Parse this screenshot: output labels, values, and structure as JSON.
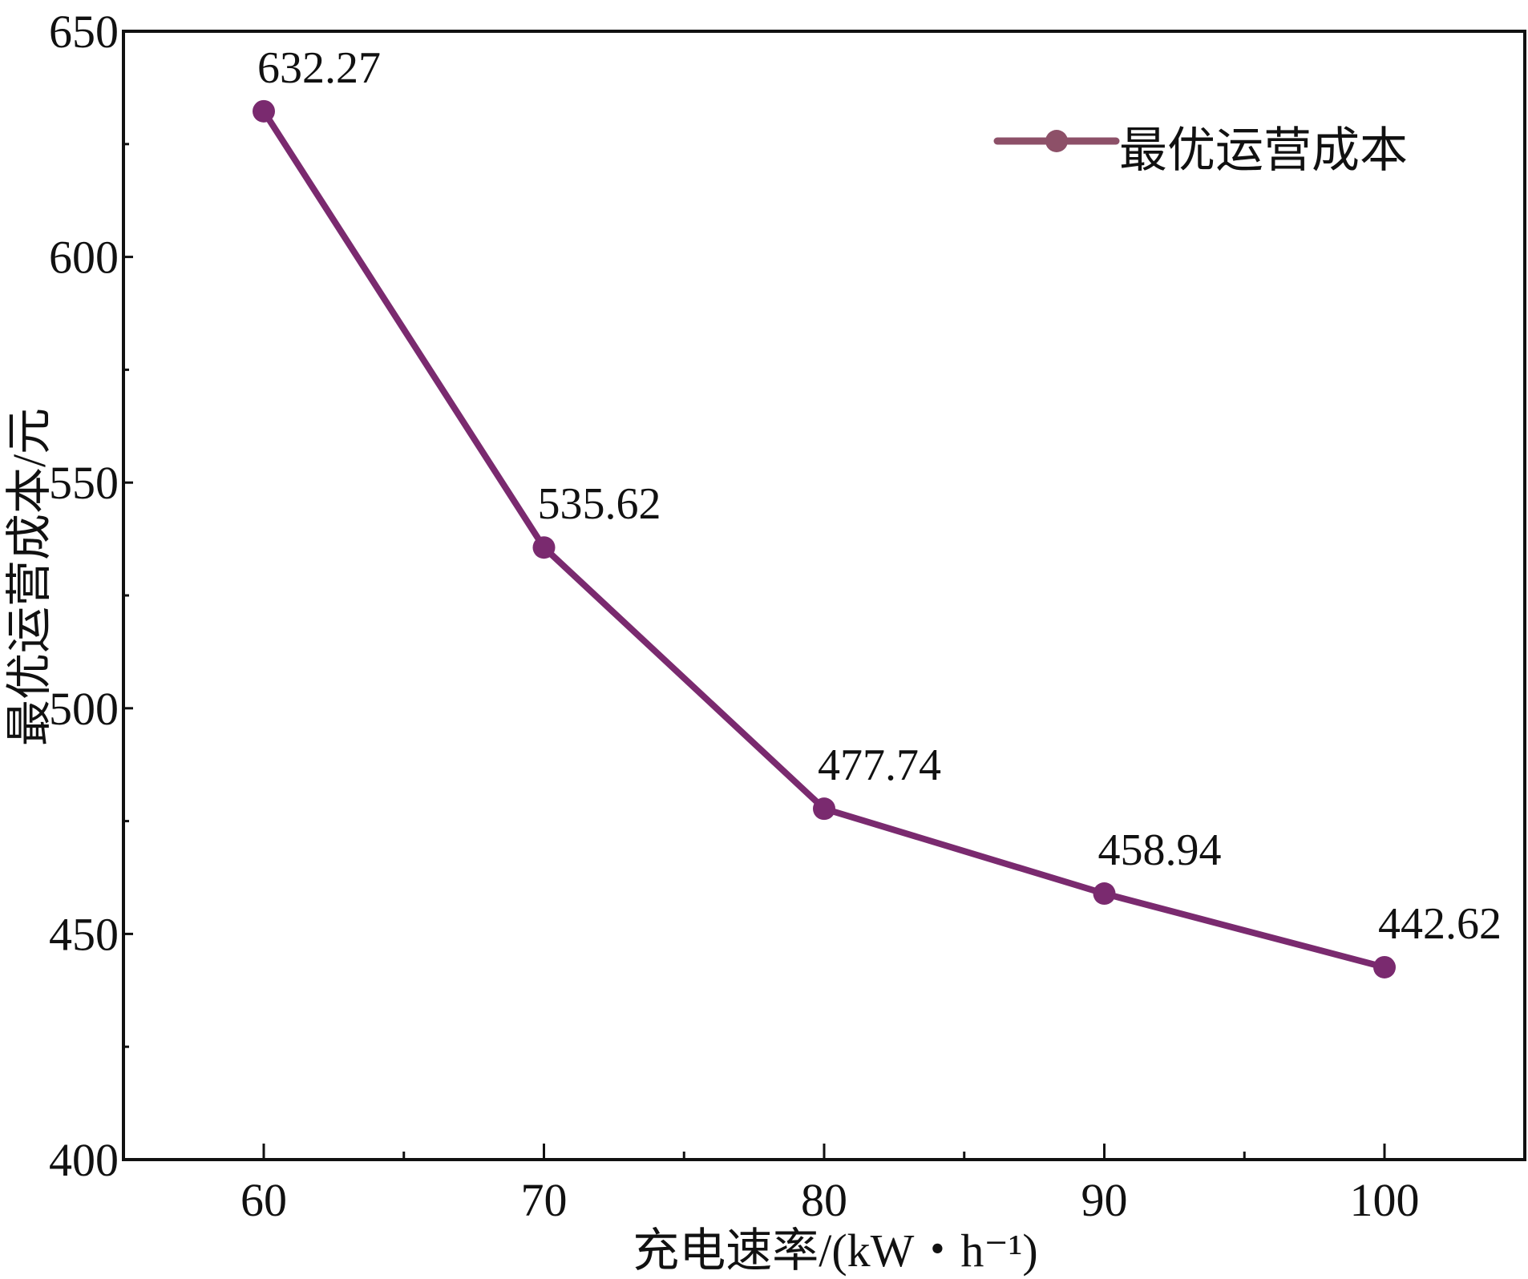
{
  "chart_data": {
    "type": "line",
    "title": "",
    "xlabel": "充电速率/(kW・h⁻¹)",
    "ylabel": "最优运营成本/元",
    "xlim": [
      55,
      105
    ],
    "ylim": [
      400,
      650
    ],
    "x_ticks": [
      60,
      70,
      80,
      90,
      100
    ],
    "y_ticks": [
      400,
      450,
      500,
      550,
      600,
      650
    ],
    "grid": false,
    "legend_position": "top-right",
    "series": [
      {
        "name": "最优运营成本",
        "color": "#7a2a6f",
        "legend_color": "#8d5068",
        "x": [
          60,
          70,
          80,
          90,
          100
        ],
        "values": [
          632.27,
          535.62,
          477.74,
          458.94,
          442.62
        ],
        "labels": [
          "632.27",
          "535.62",
          "477.74",
          "458.94",
          "442.62"
        ]
      }
    ]
  }
}
